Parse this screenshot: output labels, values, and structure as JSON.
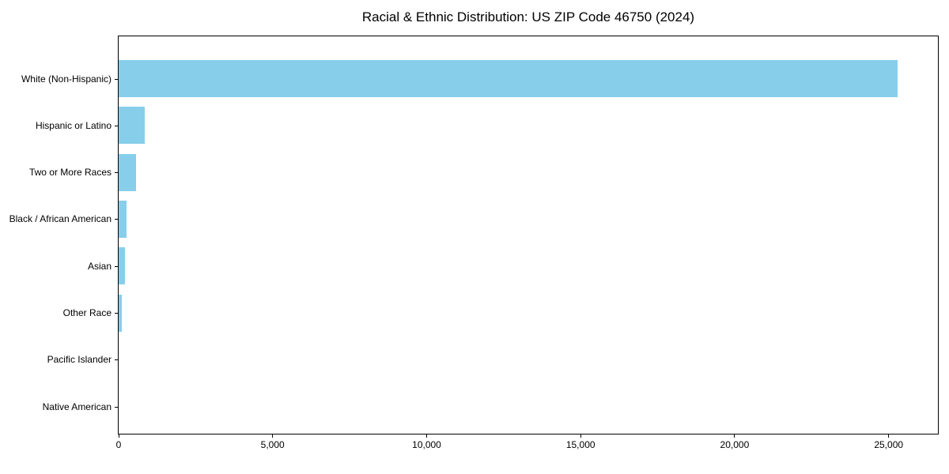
{
  "chart_data": {
    "type": "bar",
    "orientation": "horizontal",
    "title": "Racial & Ethnic Distribution: US ZIP Code 46750 (2024)",
    "categories": [
      "White (Non-Hispanic)",
      "Hispanic or Latino",
      "Two or More Races",
      "Black / African American",
      "Asian",
      "Other Race",
      "Pacific Islander",
      "Native American"
    ],
    "values": [
      25300,
      850,
      560,
      260,
      200,
      90,
      10,
      5
    ],
    "xlabel": "",
    "ylabel": "",
    "xlim": [
      0,
      26600
    ],
    "xticks": [
      0,
      5000,
      10000,
      15000,
      20000,
      25000
    ],
    "xtick_labels": [
      "0",
      "5,000",
      "10,000",
      "15,000",
      "20,000",
      "25,000"
    ],
    "bar_color": "#87CEEB",
    "axis_color": "#000000",
    "text_color": "#000000",
    "background_color": "#ffffff",
    "grid": false,
    "legend": null
  }
}
